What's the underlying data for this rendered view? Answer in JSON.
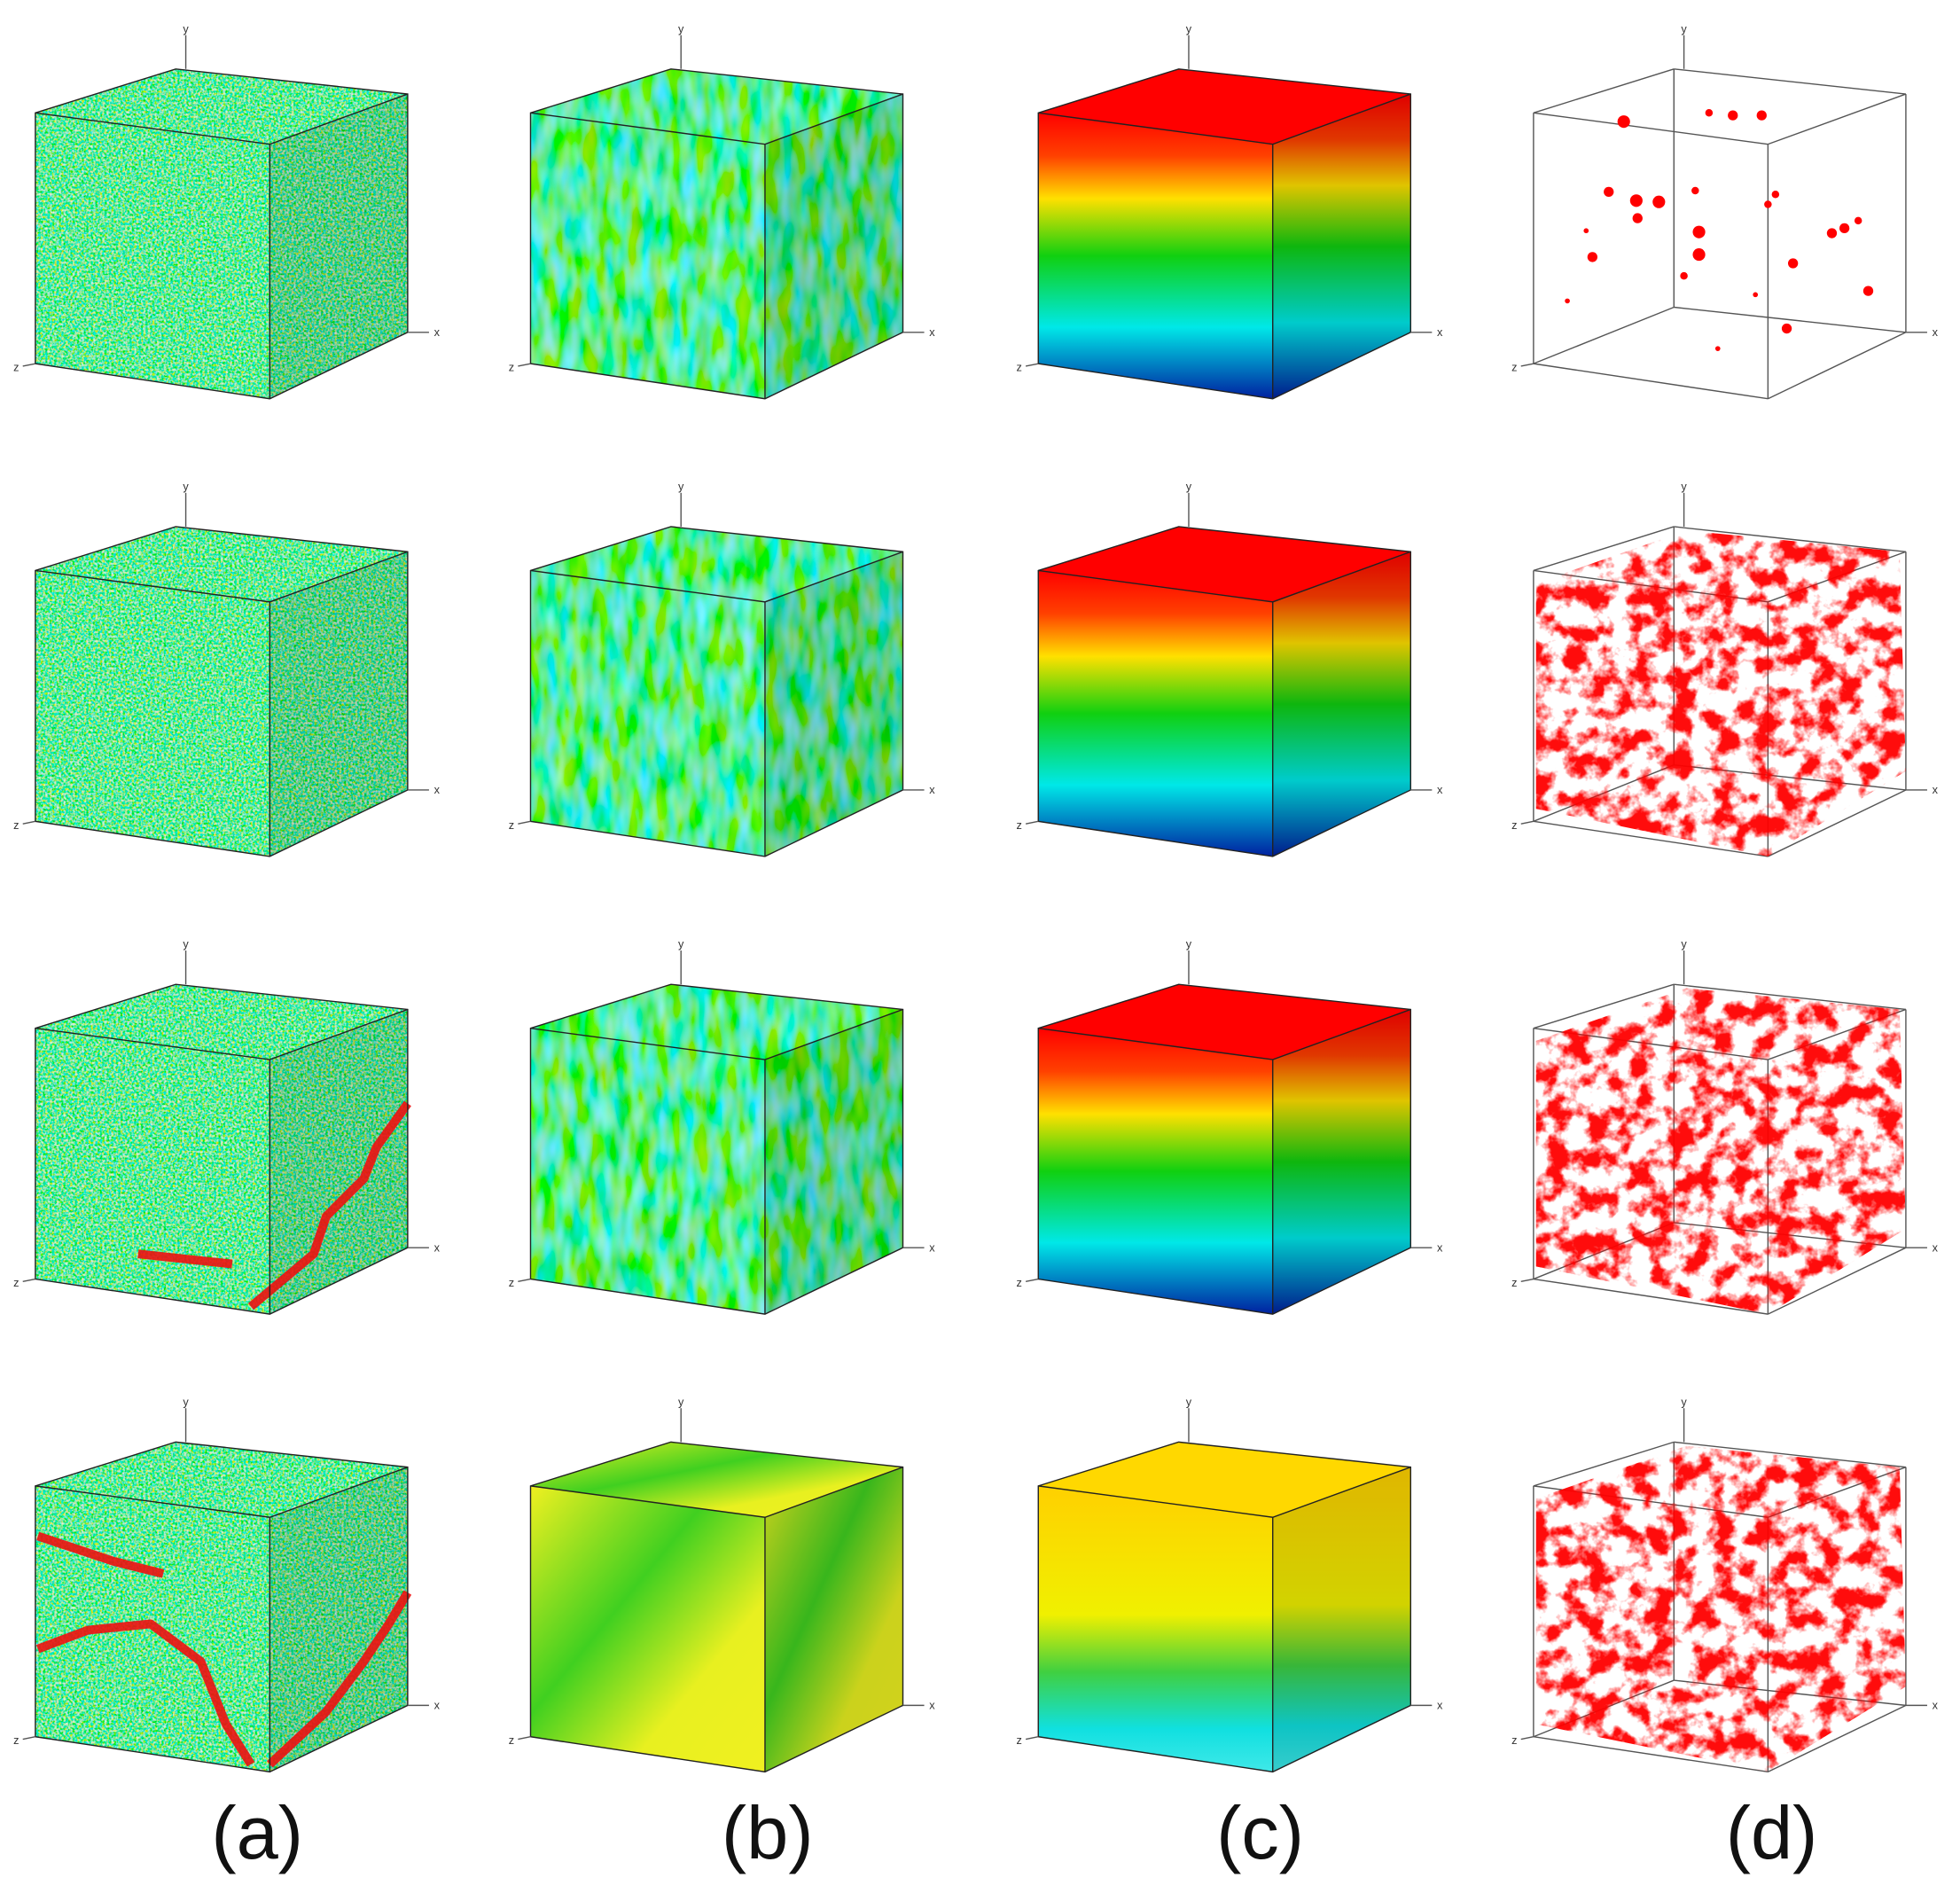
{
  "panels": [
    {
      "label": "(a)"
    },
    {
      "label": "(b)"
    },
    {
      "label": "(c)"
    },
    {
      "label": "(d)"
    }
  ],
  "axes": {
    "x": "x",
    "y": "y",
    "z": "z"
  }
}
